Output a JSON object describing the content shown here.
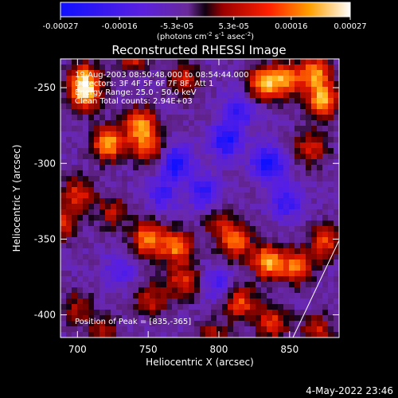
{
  "chart_data": {
    "type": "heatmap",
    "title": "Reconstructed RHESSI Image",
    "xlabel": "Heliocentric X (arcsec)",
    "ylabel": "Heliocentric Y (arcsec)",
    "xlim": [
      688,
      885
    ],
    "ylim": [
      -415,
      -231
    ],
    "x_ticks": [
      700,
      750,
      800,
      850
    ],
    "y_ticks": [
      -250,
      -300,
      -350,
      -400
    ],
    "colorbar": {
      "range": [
        -0.00027,
        0.00027
      ],
      "tick_labels": [
        "-0.00027",
        "-0.00016",
        "-5.3e-05",
        "5.3e-05",
        "0.00016",
        "0.00027"
      ],
      "units_line": "(photons cm",
      "units_exp1": "-2",
      "units_mid": " s",
      "units_exp2": "-1",
      "units_end": " asec",
      "units_exp3": "-2",
      "units_close": ")"
    },
    "annotations": [
      "19-Aug-2003 08:50:48.000 to 08:54:44.000",
      "Detectors: 3F 4F 5F 6F 7F 8F, Att 1",
      "Energy Range: 25.0 - 50.0 keV",
      "Clean    Total counts: 2.94E+03"
    ],
    "peak_label": "Position of Peak = [835,-365]",
    "hot_regions": [
      {
        "x": 705,
        "y": -245,
        "v": 0.00024
      },
      {
        "x": 705,
        "y": -255,
        "v": 0.0002
      },
      {
        "x": 722,
        "y": -287,
        "v": 0.00027
      },
      {
        "x": 745,
        "y": -275,
        "v": 0.00025
      },
      {
        "x": 750,
        "y": -290,
        "v": 0.00018
      },
      {
        "x": 775,
        "y": -245,
        "v": 0.00014
      },
      {
        "x": 832,
        "y": -247,
        "v": 0.00026
      },
      {
        "x": 848,
        "y": -245,
        "v": 0.00022
      },
      {
        "x": 868,
        "y": -240,
        "v": 0.00024
      },
      {
        "x": 873,
        "y": -258,
        "v": 0.00026
      },
      {
        "x": 865,
        "y": -290,
        "v": 0.00016
      },
      {
        "x": 740,
        "y": -228,
        "v": 0.00018
      },
      {
        "x": 700,
        "y": -320,
        "v": 0.00016
      },
      {
        "x": 690,
        "y": -340,
        "v": 0.00015
      },
      {
        "x": 725,
        "y": -332,
        "v": 0.00013
      },
      {
        "x": 750,
        "y": -350,
        "v": 0.00025
      },
      {
        "x": 770,
        "y": -355,
        "v": 0.00023
      },
      {
        "x": 800,
        "y": -340,
        "v": 0.00012
      },
      {
        "x": 812,
        "y": -352,
        "v": 0.00021
      },
      {
        "x": 835,
        "y": -365,
        "v": 0.00027
      },
      {
        "x": 855,
        "y": -368,
        "v": 0.00022
      },
      {
        "x": 875,
        "y": -352,
        "v": 0.00018
      },
      {
        "x": 775,
        "y": -378,
        "v": 0.00017
      },
      {
        "x": 752,
        "y": -390,
        "v": 0.00014
      },
      {
        "x": 815,
        "y": -392,
        "v": 0.0002
      },
      {
        "x": 838,
        "y": -405,
        "v": 0.00017
      },
      {
        "x": 700,
        "y": -395,
        "v": 0.00011
      },
      {
        "x": 718,
        "y": -412,
        "v": 0.00012
      },
      {
        "x": 870,
        "y": -410,
        "v": 0.00014
      },
      {
        "x": 795,
        "y": -415,
        "v": 0.00013
      }
    ],
    "cold_regions": [
      {
        "x": 770,
        "y": -300,
        "v": -0.0002
      },
      {
        "x": 805,
        "y": -285,
        "v": -0.00019
      },
      {
        "x": 835,
        "y": -300,
        "v": -0.00022
      },
      {
        "x": 790,
        "y": -320,
        "v": -0.00016
      },
      {
        "x": 848,
        "y": -325,
        "v": -0.00015
      },
      {
        "x": 815,
        "y": -265,
        "v": -0.00014
      },
      {
        "x": 760,
        "y": -320,
        "v": -0.00012
      },
      {
        "x": 730,
        "y": -370,
        "v": -0.0001
      },
      {
        "x": 800,
        "y": -380,
        "v": -0.00011
      }
    ]
  },
  "footer": {
    "date": "4-May-2022 23:46"
  }
}
